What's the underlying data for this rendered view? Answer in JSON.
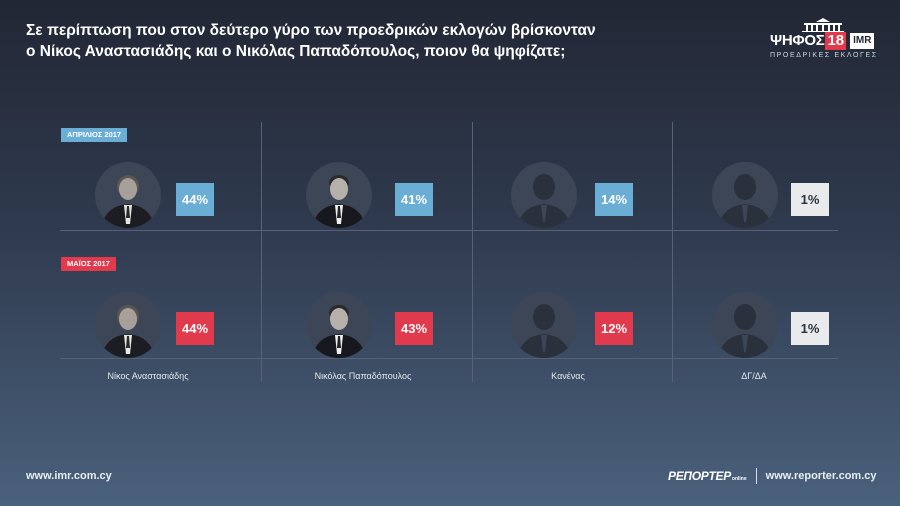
{
  "title_line1": "Σε περίπτωση που στον δεύτερο γύρο των προεδρικών εκλογών βρίσκονταν",
  "title_line2": "ο Νίκος Αναστασιάδης και ο Νικόλας Παπαδόπουλος, ποιον θα ψηφίζατε;",
  "logo": {
    "name": "ΨΗΦΟΣ",
    "year": "18",
    "partner": "IMR",
    "subtitle": "ΠΡΟΕΔΡΙΚΕΣ ΕΚΛΟΓΕΣ",
    "accent": "#e03a4c"
  },
  "chart_data": {
    "type": "table",
    "categories": [
      "Νίκος Αναστασιάδης",
      "Νικόλας Παπαδόπουλος",
      "Κανένας",
      "ΔΓ/ΔΑ"
    ],
    "series": [
      {
        "name": "ΑΠΡΙΛΙΟΣ 2017",
        "color": "#6aaed6",
        "values": [
          44,
          41,
          14,
          1
        ],
        "labels": [
          "44%",
          "41%",
          "14%",
          "1%"
        ]
      },
      {
        "name": "ΜΑΪΟΣ 2017",
        "color": "#e03a4c",
        "values": [
          44,
          43,
          12,
          1
        ],
        "labels": [
          "44%",
          "43%",
          "12%",
          "1%"
        ]
      }
    ],
    "unit": "%",
    "neutral_color": "#e9eaec"
  },
  "avatars": [
    "anastasiadis-photo",
    "papadopoulos-photo",
    "silhouette-icon",
    "silhouette-icon"
  ],
  "footer": {
    "left_url": "www.imr.com.cy",
    "brand": "ΡΕΠΟΡΤΕΡ",
    "brand_sub": "online",
    "right_url": "www.reporter.com.cy"
  }
}
